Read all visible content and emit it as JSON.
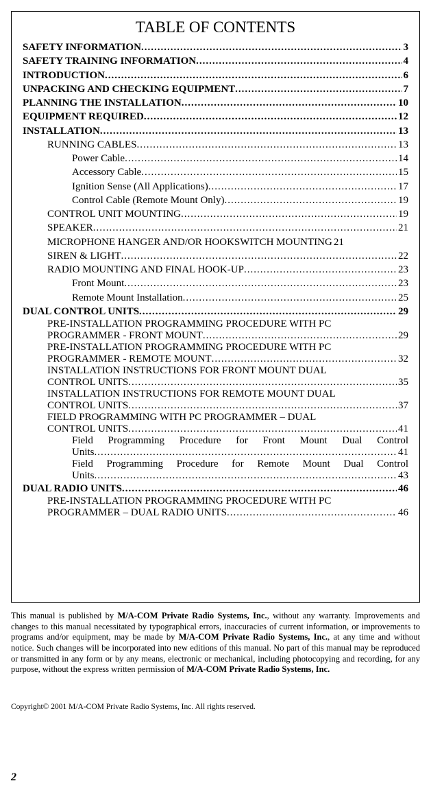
{
  "page": {
    "number": "2",
    "title": "TABLE OF CONTENTS"
  },
  "toc": [
    {
      "indent": 0,
      "label": "SAFETY INFORMATION",
      "page": "3",
      "bold": true
    },
    {
      "indent": 0,
      "label": "SAFETY TRAINING INFORMATION",
      "page": "4",
      "bold": true
    },
    {
      "indent": 0,
      "label": "INTRODUCTION",
      "page": "6",
      "bold": true
    },
    {
      "indent": 0,
      "label": "UNPACKING AND CHECKING EQUIPMENT",
      "page": "7",
      "bold": true
    },
    {
      "indent": 0,
      "label": "PLANNING THE INSTALLATION",
      "page": "10",
      "bold": true
    },
    {
      "indent": 0,
      "label": "EQUIPMENT REQUIRED",
      "page": "12",
      "bold": true
    },
    {
      "indent": 0,
      "label": "INSTALLATION",
      "page": "13",
      "bold": true
    },
    {
      "indent": 1,
      "label": "RUNNING CABLES",
      "page": "13"
    },
    {
      "indent": 2,
      "label": "Power Cable",
      "page": "14"
    },
    {
      "indent": 2,
      "label": "Accessory Cable",
      "page": "15"
    },
    {
      "indent": 2,
      "label": "Ignition Sense (All Applications)",
      "page": "17"
    },
    {
      "indent": 2,
      "label": "Control Cable (Remote Mount Only)",
      "page": "19"
    },
    {
      "indent": 1,
      "label": "CONTROL UNIT MOUNTING",
      "page": "19"
    },
    {
      "indent": 1,
      "label": "SPEAKER",
      "page": "21"
    },
    {
      "indent": 1,
      "label": "MICROPHONE HANGER AND/OR HOOKSWITCH MOUNTING",
      "page": "21",
      "no_dots": true
    },
    {
      "indent": 1,
      "label": "SIREN & LIGHT",
      "page": "22"
    },
    {
      "indent": 1,
      "label": "RADIO MOUNTING AND FINAL HOOK-UP",
      "page": "23"
    },
    {
      "indent": 2,
      "label": "Front Mount",
      "page": "23"
    },
    {
      "indent": 2,
      "label": "Remote Mount Installation",
      "page": "25"
    },
    {
      "indent": 0,
      "label": "DUAL CONTROL UNITS",
      "page": "29",
      "bold": true
    },
    {
      "indent": 1,
      "wrap": [
        "PRE-INSTALLATION PROGRAMMING PROCEDURE WITH PC",
        "PROGRAMMER - FRONT MOUNT"
      ],
      "page": "29"
    },
    {
      "indent": 1,
      "wrap": [
        "PRE-INSTALLATION PROGRAMMING PROCEDURE WITH PC",
        "PROGRAMMER - REMOTE MOUNT"
      ],
      "page": "32"
    },
    {
      "indent": 1,
      "wrap": [
        "INSTALLATION INSTRUCTIONS FOR FRONT MOUNT DUAL",
        "CONTROL UNITS"
      ],
      "page": "35"
    },
    {
      "indent": 1,
      "wrap": [
        "INSTALLATION INSTRUCTIONS FOR REMOTE MOUNT DUAL",
        "CONTROL UNITS"
      ],
      "page": "37"
    },
    {
      "indent": 1,
      "wrap": [
        "FIELD PROGRAMMING WITH PC PROGRAMMER – DUAL",
        "CONTROL UNITS"
      ],
      "page": "41"
    },
    {
      "indent": 2,
      "wrap_justify": [
        "Field Programming Procedure for Front Mount Dual Control",
        "Units"
      ],
      "page": "41"
    },
    {
      "indent": 2,
      "wrap_justify": [
        "Field Programming Procedure for Remote Mount Dual Control",
        "Units"
      ],
      "page": "43"
    },
    {
      "indent": 0,
      "label": "DUAL RADIO UNITS",
      "page": "46",
      "bold": true
    },
    {
      "indent": 1,
      "wrap": [
        "PRE-INSTALLATION PROGRAMMING PROCEDURE WITH PC",
        "PROGRAMMER – DUAL RADIO UNITS"
      ],
      "page": "46"
    }
  ],
  "disclaimer": {
    "text_a": "This manual is published by ",
    "company1": "M/A-COM Private Radio Systems, Inc.",
    "text_b": ", without any warranty. Improvements and changes to this manual necessitated by typographical errors, inaccuracies of current information, or improvements to programs and/or equipment, may be made by ",
    "company2": "M/A-COM Private Radio Systems, Inc.",
    "text_c": ", at any time and without notice. Such changes will be incorporated into new editions of this manual. No part of this manual may be reproduced or transmitted in any form or by any means, electronic or mechanical, including photocopying and recording, for any purpose, without the express written permission of ",
    "company3": "M/A-COM Private Radio Systems, Inc."
  },
  "copyright": "Copyright© 2001 M/A-COM Private Radio Systems, Inc. All rights reserved."
}
